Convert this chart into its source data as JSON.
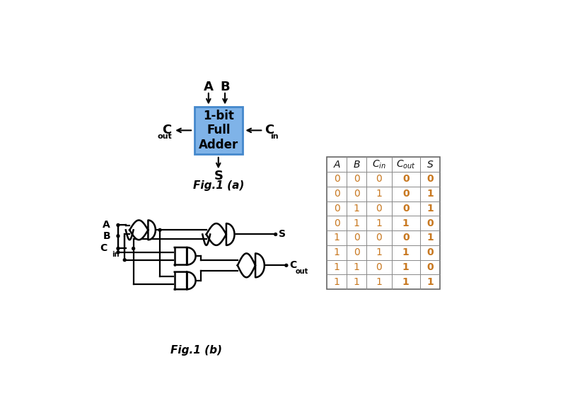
{
  "bg_color": "#ffffff",
  "box_color": "#7fb3e8",
  "box_edge_color": "#4488cc",
  "box_text": "1-bit\nFull\nAdder",
  "fig1a_label": "Fig.1 (a)",
  "fig1b_label": "Fig.1 (b)",
  "table_headers_display": [
    "A",
    "B",
    "C_in",
    "C_out",
    "S"
  ],
  "table_data": [
    [
      0,
      0,
      0,
      0,
      0
    ],
    [
      0,
      0,
      1,
      0,
      1
    ],
    [
      0,
      1,
      0,
      0,
      1
    ],
    [
      0,
      1,
      1,
      1,
      0
    ],
    [
      1,
      0,
      0,
      0,
      1
    ],
    [
      1,
      0,
      1,
      1,
      0
    ],
    [
      1,
      1,
      0,
      1,
      0
    ],
    [
      1,
      1,
      1,
      1,
      1
    ]
  ],
  "text_color": "#c87820",
  "text_color_bold": "#c87820",
  "header_color": "#111111"
}
